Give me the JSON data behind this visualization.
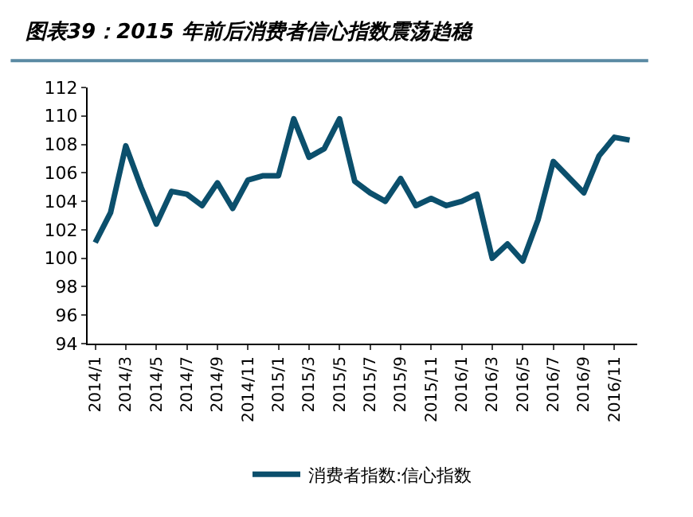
{
  "chart_data": {
    "type": "line",
    "title": "图表39：2015 年前后消费者信心指数震荡趋稳",
    "categories": [
      "2014/1",
      null,
      "2014/3",
      null,
      "2014/5",
      null,
      "2014/7",
      null,
      "2014/9",
      null,
      "2014/11",
      null,
      "2015/1",
      null,
      "2015/3",
      null,
      "2015/5",
      null,
      "2015/7",
      null,
      "2015/9",
      null,
      "2015/11",
      null,
      "2016/1",
      null,
      "2016/3",
      null,
      "2016/5",
      null,
      "2016/7",
      null,
      "2016/9",
      null,
      "2016/11",
      null
    ],
    "series": [
      {
        "name": "消费者指数:信心指数",
        "color": "#0b4f6c",
        "values": [
          101.1,
          103.2,
          107.9,
          105.0,
          102.4,
          104.7,
          104.5,
          103.7,
          105.3,
          103.5,
          105.5,
          105.8,
          105.8,
          109.8,
          107.1,
          107.7,
          109.8,
          105.4,
          104.6,
          104.0,
          105.6,
          103.7,
          104.2,
          103.7,
          104.0,
          104.5,
          100.0,
          101.0,
          99.8,
          102.7,
          106.8,
          105.7,
          104.6,
          107.2,
          108.5,
          108.3
        ]
      }
    ],
    "ylim": [
      94,
      112
    ],
    "yticks": [
      94,
      96,
      98,
      100,
      102,
      104,
      106,
      108,
      110,
      112
    ],
    "legend": "bottom",
    "marker": "none",
    "line_style": "solid"
  }
}
